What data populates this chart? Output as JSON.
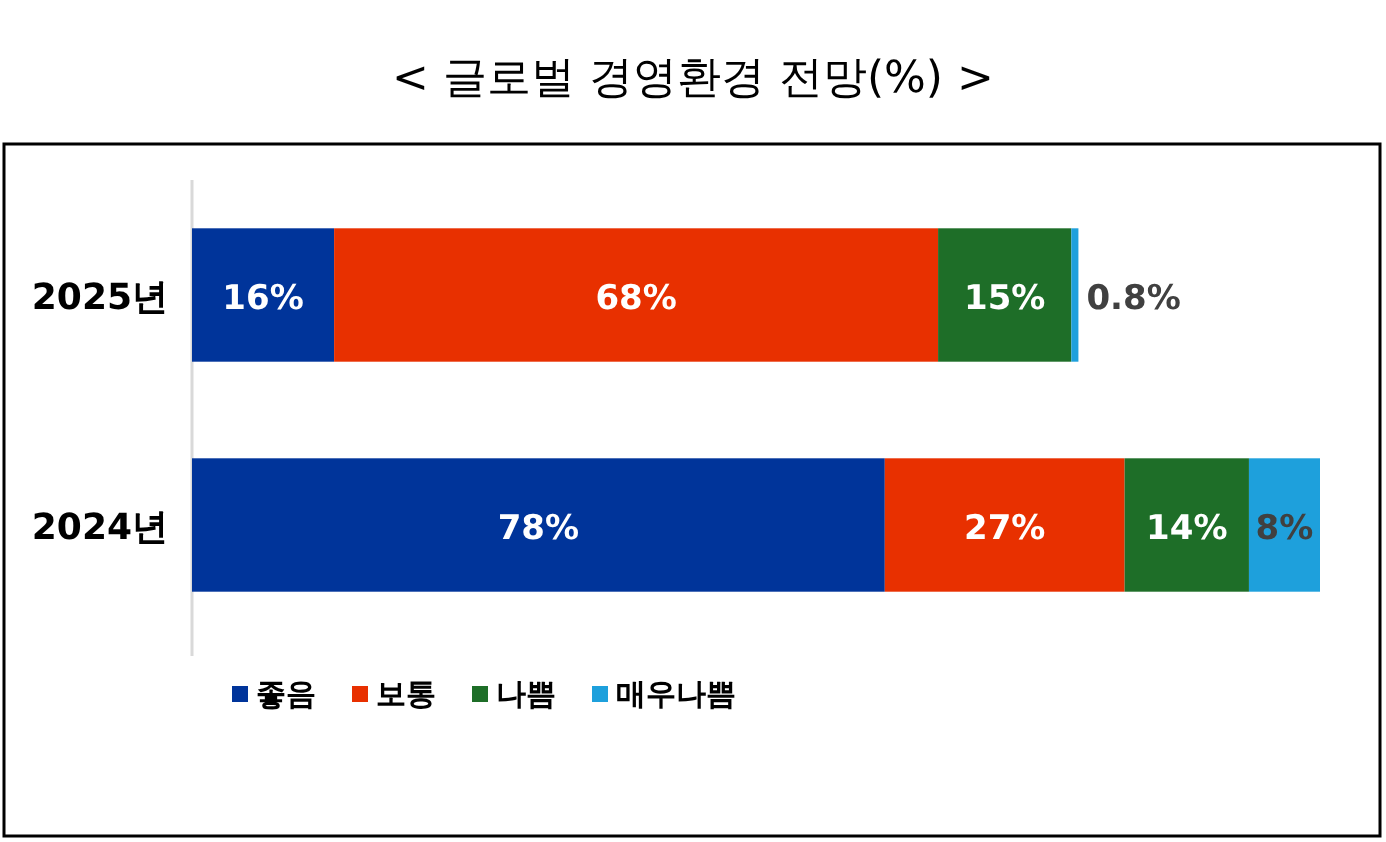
{
  "chart_data": {
    "type": "bar",
    "orientation": "horizontal",
    "stacked": true,
    "title": "< 글로벌 경영환경 전망(%) >",
    "legend": "bottom",
    "categories": [
      "2025년",
      "2024년"
    ],
    "series": [
      {
        "name": "좋음",
        "color": "#00349a",
        "values": [
          16,
          78
        ],
        "value_labels": [
          "16%",
          "78%"
        ]
      },
      {
        "name": "보통",
        "color": "#e83000",
        "values": [
          68,
          27
        ],
        "value_labels": [
          "68%",
          "27%"
        ]
      },
      {
        "name": "나쁨",
        "color": "#1e6e28",
        "values": [
          15,
          14
        ],
        "value_labels": [
          "15%",
          "14%"
        ]
      },
      {
        "name": "매우나쁨",
        "color": "#1ea0dc",
        "values": [
          0.8,
          8
        ],
        "value_labels": [
          "0.8%",
          "8%"
        ]
      }
    ]
  }
}
